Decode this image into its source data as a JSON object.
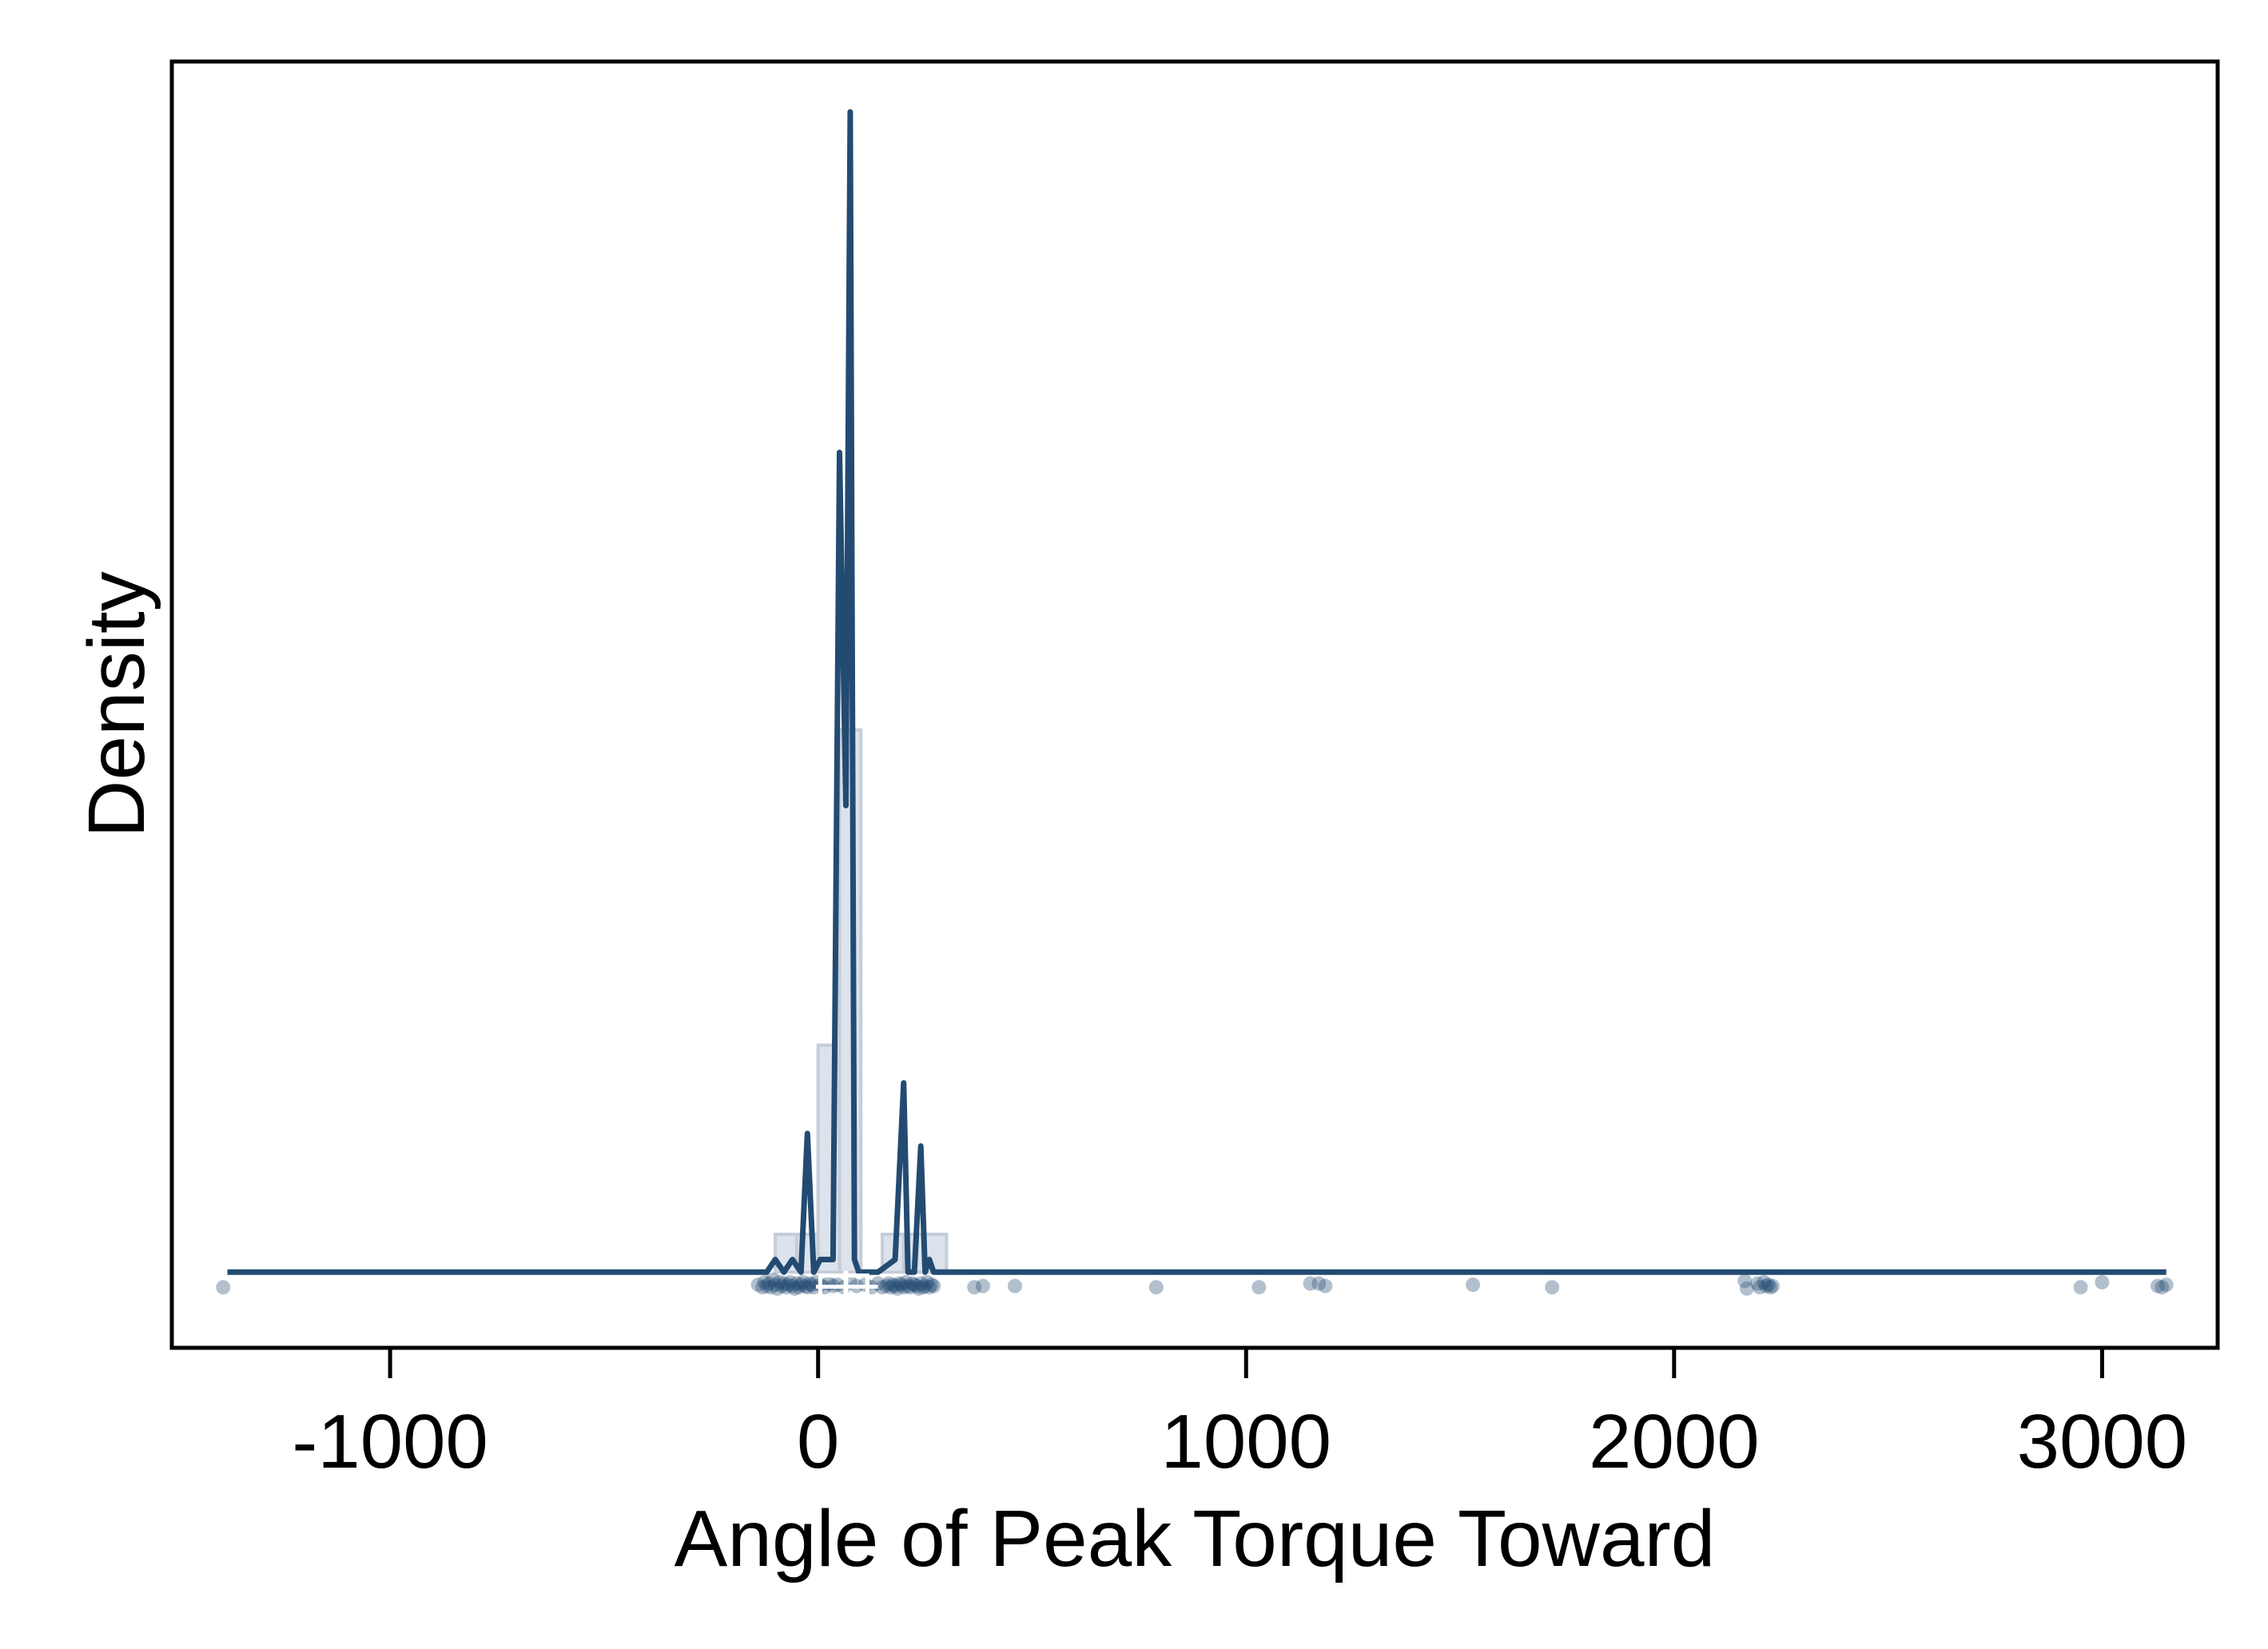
{
  "chart_data": {
    "type": "density",
    "title": "",
    "xlabel": "Angle of Peak Torque Toward",
    "ylabel": "Density",
    "xlim": [
      -1510,
      3270
    ],
    "ylim": [
      -6e-05,
      0.00096
    ],
    "x_ticks": [
      -1000,
      0,
      1000,
      2000,
      3000
    ],
    "x_tick_labels": [
      "-1000",
      "0",
      "1000",
      "2000",
      "3000"
    ],
    "y_ticks_shown": false,
    "grid": false,
    "legend": "none",
    "colors": {
      "density_line": "#234B72",
      "histogram_fill": "#DDE3EC",
      "histogram_edge": "#C5CDD8",
      "points": "#234B72",
      "boxplot": "#ffffff"
    },
    "histogram": {
      "bin_edges": [
        -100,
        -50,
        0,
        50,
        100,
        150,
        200,
        250,
        300
      ],
      "density": [
        3e-05,
        3e-05,
        0.00018,
        0.00043,
        0.0,
        3e-05,
        3e-05,
        3e-05
      ]
    },
    "density_curve": {
      "x": [
        -1380,
        -120,
        -100,
        -80,
        -60,
        -40,
        -25,
        -10,
        5,
        20,
        35,
        50,
        65,
        75,
        85,
        95,
        105,
        140,
        180,
        200,
        210,
        225,
        240,
        250,
        260,
        270,
        290,
        3150
      ],
      "y": [
        0.0,
        0.0,
        1e-05,
        0.0,
        1e-05,
        0.0,
        0.00011,
        0.0,
        1e-05,
        1e-05,
        1e-05,
        0.00065,
        0.00037,
        0.00092,
        1e-05,
        0.0,
        0.0,
        0.0,
        1e-05,
        0.00015,
        0.0,
        0.0,
        0.0001,
        0.0,
        1e-05,
        0.0,
        0.0,
        0.0
      ]
    },
    "jitter_points": {
      "x": [
        -1390,
        -140,
        -130,
        -125,
        -120,
        -115,
        -110,
        -105,
        -100,
        -95,
        -90,
        -85,
        -80,
        -75,
        -70,
        -65,
        -60,
        -55,
        -50,
        -45,
        -40,
        -35,
        -30,
        -25,
        -20,
        -15,
        -10,
        -5,
        5,
        15,
        25,
        35,
        45,
        60,
        75,
        90,
        110,
        125,
        140,
        150,
        160,
        165,
        170,
        175,
        180,
        185,
        190,
        195,
        200,
        205,
        210,
        215,
        220,
        225,
        230,
        235,
        240,
        245,
        250,
        255,
        260,
        265,
        270,
        365,
        385,
        460,
        790,
        1030,
        1150,
        1170,
        1185,
        1530,
        1715,
        2165,
        2170,
        2195,
        2200,
        2210,
        2215,
        2220,
        2225,
        2230,
        2950,
        3000,
        3130,
        3140,
        3150
      ],
      "offset": [
        -1.2e-05,
        -1e-05,
        -1.2e-05,
        -8e-06,
        -1.1e-05,
        -9e-06,
        -1.2e-05,
        -6e-06,
        -1e-05,
        -1.3e-05,
        -8e-06,
        -1.1e-05,
        -9e-06,
        -1.2e-05,
        -1e-05,
        -8e-06,
        -1.1e-05,
        -1.3e-05,
        -9e-06,
        -1.2e-05,
        -1e-05,
        -8e-06,
        -1.1e-05,
        -1.2e-05,
        -9e-06,
        -1e-05,
        -1.2e-05,
        -8e-06,
        -1e-05,
        -1.2e-05,
        -9e-06,
        -1.1e-05,
        -1e-05,
        -1.2e-05,
        -8e-06,
        -1.1e-05,
        -1e-05,
        -1.2e-05,
        -9e-06,
        -1.2e-05,
        -1.1e-05,
        -9e-06,
        -1.2e-05,
        -1e-05,
        -1.1e-05,
        -1.3e-05,
        -9e-06,
        -1e-05,
        -1.2e-05,
        -8e-06,
        -1.1e-05,
        -1.2e-05,
        -9e-06,
        -1e-05,
        -1.1e-05,
        -1.3e-05,
        -9e-06,
        -1.2e-05,
        -1.1e-05,
        -8e-06,
        -1.2e-05,
        -1e-05,
        -1.1e-05,
        -1.2e-05,
        -1.1e-05,
        -1.1e-05,
        -1.2e-05,
        -1.2e-05,
        -9e-06,
        -9e-06,
        -1.1e-05,
        -1e-05,
        -1.2e-05,
        -7e-06,
        -1.3e-05,
        -9e-06,
        -1.2e-05,
        -8e-06,
        -1.1e-05,
        -1e-05,
        -1.2e-05,
        -1.1e-05,
        -1.2e-05,
        -8e-06,
        -1.1e-05,
        -1.2e-05,
        -1e-05
      ]
    },
    "boxplot": {
      "q1": 5,
      "median": 65,
      "q3": 115,
      "whisker_low": -5,
      "whisker_high": 140
    }
  }
}
